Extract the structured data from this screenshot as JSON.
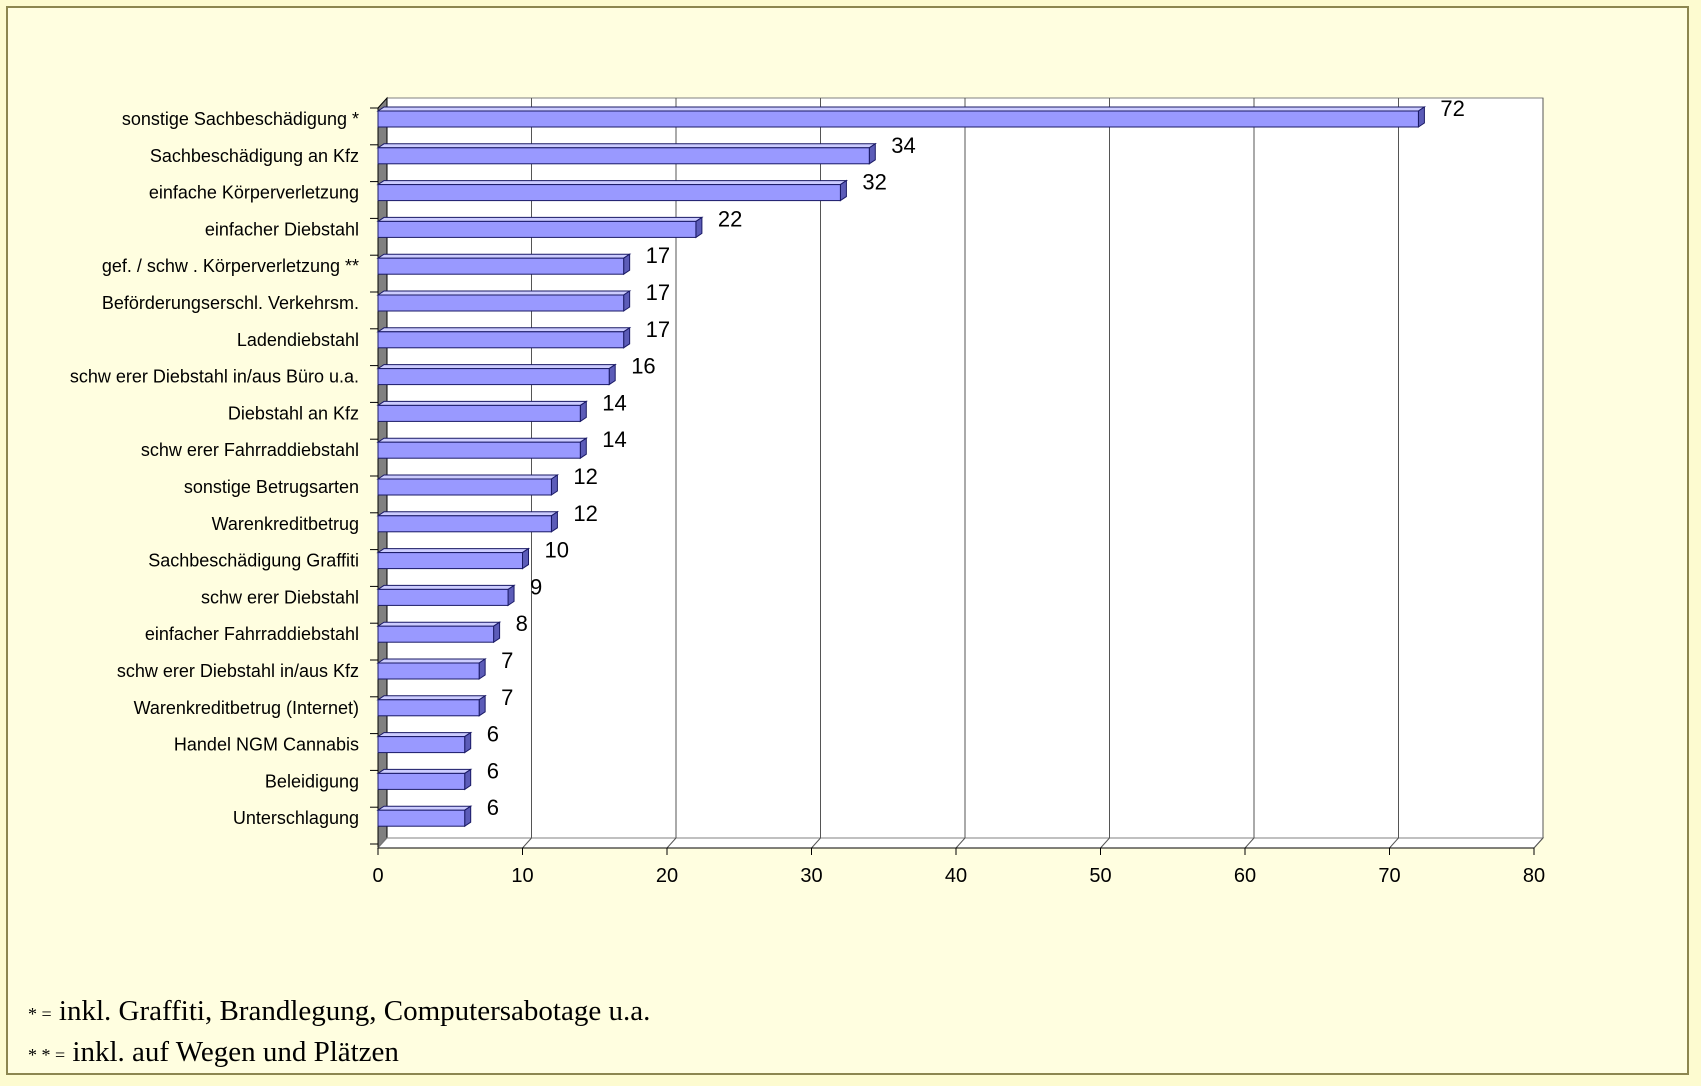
{
  "chart_data": {
    "type": "bar",
    "orientation": "horizontal",
    "categories": [
      "sonstige Sachbeschädigung *",
      "Sachbeschädigung an Kfz",
      "einfache Körperverletzung",
      "einfacher  Diebstahl",
      "gef. / schw . Körperverletzung **",
      "Beförderungserschl. Verkehrsm.",
      "Ladendiebstahl",
      "schw erer Diebstahl in/aus Büro u.a.",
      "Diebstahl an Kfz",
      "schw erer Fahrraddiebstahl",
      "sonstige Betrugsarten",
      "Warenkreditbetrug",
      "Sachbeschädigung Graffiti",
      "schw erer Diebstahl",
      "einfacher Fahrraddiebstahl",
      "schw erer Diebstahl   in/aus Kfz",
      "Warenkreditbetrug (Internet)",
      "Handel NGM Cannabis",
      "Beleidigung",
      "Unterschlagung"
    ],
    "values": [
      72,
      34,
      32,
      22,
      17,
      17,
      17,
      16,
      14,
      14,
      12,
      12,
      10,
      9,
      8,
      7,
      7,
      6,
      6,
      6
    ],
    "xlim": [
      0,
      80
    ],
    "xticks": [
      0,
      10,
      20,
      30,
      40,
      50,
      60,
      70,
      80
    ],
    "grid": true,
    "legend": "none",
    "colors": {
      "bar_front": "#9999ff",
      "bar_top": "#ccccff",
      "bar_side": "#5c5cb8",
      "outline": "#1a1a66",
      "wall": "#808080"
    }
  },
  "footnotes": [
    {
      "mark": "* =",
      "text": "inkl. Graffiti, Brandlegung, Computersabotage u.a."
    },
    {
      "mark": "* * =",
      "text": "inkl. auf Wegen und Plätzen"
    }
  ]
}
